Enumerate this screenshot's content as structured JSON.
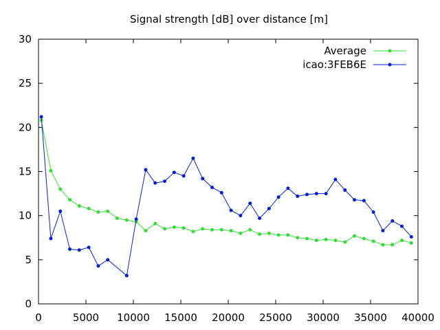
{
  "chart_data": {
    "type": "line",
    "title": "Signal strength [dB] over distance [m]",
    "xlabel": "",
    "ylabel": "",
    "xlim": [
      0,
      40000
    ],
    "ylim": [
      0,
      30
    ],
    "xticks": [
      "0",
      "5000",
      "10000",
      "15000",
      "20000",
      "25000",
      "30000",
      "35000",
      "40000"
    ],
    "yticks": [
      "0",
      "5",
      "10",
      "15",
      "20",
      "25",
      "30"
    ],
    "grid": false,
    "legend_position": "top-right",
    "series": [
      {
        "name": "Average",
        "color": "#33dd33",
        "x": [
          300,
          1300,
          2300,
          3300,
          4300,
          5300,
          6300,
          7300,
          8300,
          9300,
          10300,
          11300,
          12300,
          13300,
          14300,
          15300,
          16300,
          17300,
          18300,
          19300,
          20300,
          21300,
          22300,
          23300,
          24300,
          25300,
          26300,
          27300,
          28300,
          29300,
          30300,
          31300,
          32300,
          33300,
          34300,
          35300,
          36300,
          37300,
          38300,
          39300
        ],
        "y": [
          20.8,
          15.1,
          13.0,
          11.8,
          11.1,
          10.8,
          10.4,
          10.5,
          9.7,
          9.5,
          9.3,
          8.3,
          9.1,
          8.5,
          8.7,
          8.6,
          8.2,
          8.5,
          8.4,
          8.4,
          8.3,
          8.0,
          8.4,
          7.9,
          8.0,
          7.8,
          7.8,
          7.5,
          7.4,
          7.2,
          7.3,
          7.2,
          7.0,
          7.7,
          7.4,
          7.1,
          6.7,
          6.7,
          7.2,
          6.9
        ]
      },
      {
        "name": "icao:3FEB6E",
        "color": "#0022cc",
        "x": [
          300,
          1300,
          2300,
          3300,
          4300,
          5300,
          6300,
          7300,
          9300,
          10300,
          11300,
          12300,
          13300,
          14300,
          15300,
          16300,
          17300,
          18300,
          19300,
          20300,
          21300,
          22300,
          23300,
          24300,
          25300,
          26300,
          27300,
          28300,
          29300,
          30300,
          31300,
          32300,
          33300,
          34300,
          35300,
          36300,
          37300,
          38300,
          39300
        ],
        "y": [
          21.2,
          7.4,
          10.5,
          6.2,
          6.1,
          6.4,
          4.3,
          5.0,
          3.2,
          9.6,
          15.2,
          13.7,
          13.9,
          14.9,
          14.5,
          16.5,
          14.2,
          13.2,
          12.6,
          10.6,
          10.0,
          11.4,
          9.7,
          10.8,
          12.1,
          13.1,
          12.2,
          12.4,
          12.5,
          12.5,
          14.1,
          12.9,
          11.8,
          11.7,
          10.4,
          8.3,
          9.4,
          8.8,
          7.6
        ]
      }
    ]
  }
}
